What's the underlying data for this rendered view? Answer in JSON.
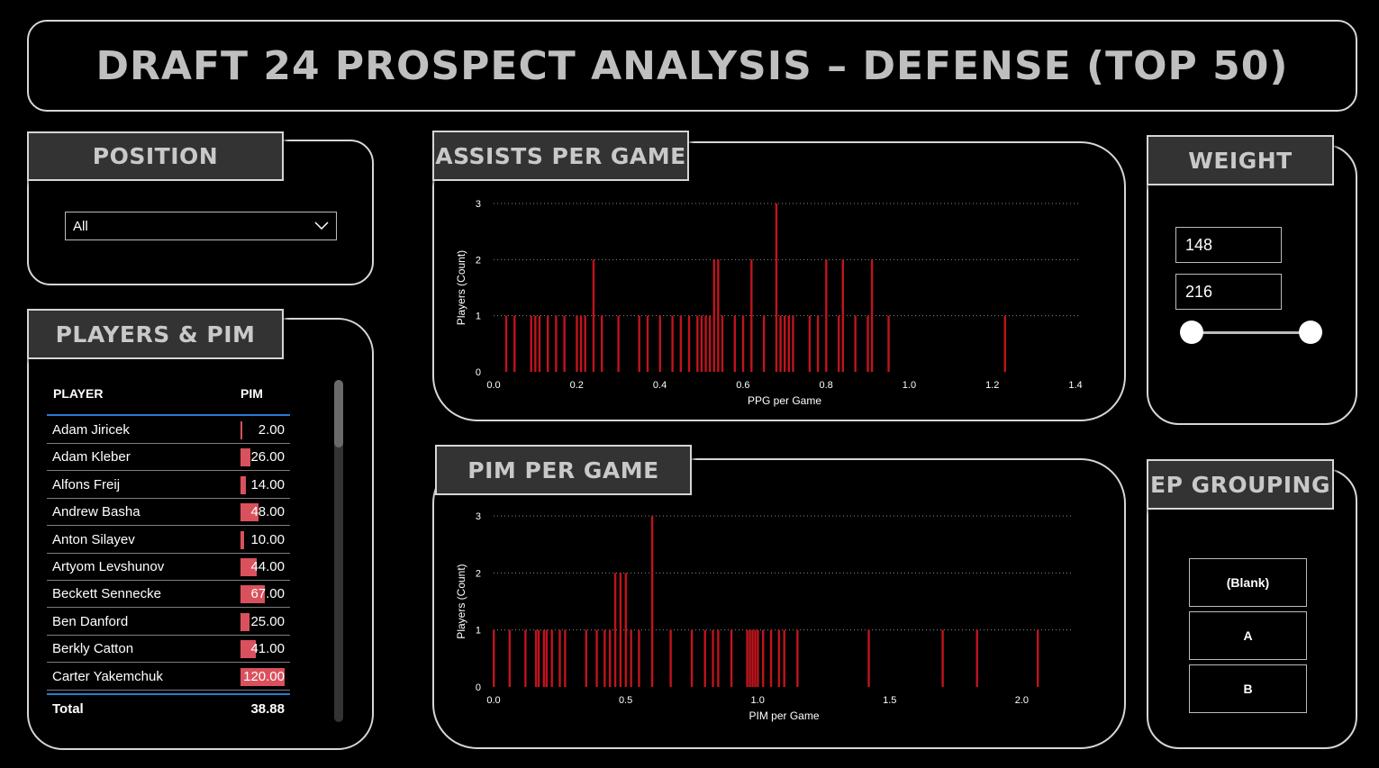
{
  "title": "DRAFT 24 PROSPECT ANALYSIS –  DEFENSE (TOP 50)",
  "colors": {
    "bar": "#c0141c",
    "pim_bar": "#d9515d",
    "panel_border": "#d6d6d6"
  },
  "position": {
    "header": "POSITION",
    "selected": "All",
    "chevron_icon": "chevron-down-icon"
  },
  "players_pim": {
    "header": "PLAYERS & PIM",
    "columns": [
      "PLAYER",
      "PIM"
    ],
    "rows": [
      {
        "player": "Adam Jiricek",
        "pim": "2.00",
        "value": 2
      },
      {
        "player": "Adam Kleber",
        "pim": "26.00",
        "value": 26
      },
      {
        "player": "Alfons Freij",
        "pim": "14.00",
        "value": 14
      },
      {
        "player": "Andrew Basha",
        "pim": "48.00",
        "value": 48
      },
      {
        "player": "Anton Silayev",
        "pim": "10.00",
        "value": 10
      },
      {
        "player": "Artyom Levshunov",
        "pim": "44.00",
        "value": 44
      },
      {
        "player": "Beckett Sennecke",
        "pim": "67.00",
        "value": 67
      },
      {
        "player": "Ben Danford",
        "pim": "25.00",
        "value": 25
      },
      {
        "player": "Berkly Catton",
        "pim": "41.00",
        "value": 41
      },
      {
        "player": "Carter Yakemchuk",
        "pim": "120.00",
        "value": 120
      }
    ],
    "total_label": "Total",
    "total_value": "38.88"
  },
  "weight": {
    "header": "WEIGHT",
    "min": "148",
    "max": "216"
  },
  "ep_grouping": {
    "header": "EP GROUPING",
    "options": [
      "(Blank)",
      "A",
      "B"
    ]
  },
  "assists_chart": {
    "header": "ASSISTS PER GAME"
  },
  "pim_chart": {
    "header": "PIM PER GAME"
  },
  "chart_data": [
    {
      "type": "bar",
      "title": "ASSISTS PER GAME",
      "xlabel": "PPG per Game",
      "ylabel": "Players (Count)",
      "xlim": [
        0,
        1.4
      ],
      "ylim": [
        0,
        3
      ],
      "xticks": [
        "0.0",
        "0.2",
        "0.4",
        "0.6",
        "0.8",
        "1.0",
        "1.2",
        "1.4"
      ],
      "yticks": [
        "0",
        "1",
        "2",
        "3"
      ],
      "grid": true,
      "points": [
        {
          "x": 0.03,
          "y": 1
        },
        {
          "x": 0.05,
          "y": 1
        },
        {
          "x": 0.09,
          "y": 1
        },
        {
          "x": 0.1,
          "y": 1
        },
        {
          "x": 0.11,
          "y": 1
        },
        {
          "x": 0.13,
          "y": 1
        },
        {
          "x": 0.15,
          "y": 1
        },
        {
          "x": 0.17,
          "y": 1
        },
        {
          "x": 0.2,
          "y": 1
        },
        {
          "x": 0.21,
          "y": 1
        },
        {
          "x": 0.22,
          "y": 1
        },
        {
          "x": 0.24,
          "y": 2
        },
        {
          "x": 0.26,
          "y": 1
        },
        {
          "x": 0.3,
          "y": 1
        },
        {
          "x": 0.35,
          "y": 1
        },
        {
          "x": 0.37,
          "y": 1
        },
        {
          "x": 0.4,
          "y": 1
        },
        {
          "x": 0.43,
          "y": 1
        },
        {
          "x": 0.45,
          "y": 1
        },
        {
          "x": 0.47,
          "y": 1
        },
        {
          "x": 0.49,
          "y": 1
        },
        {
          "x": 0.5,
          "y": 1
        },
        {
          "x": 0.51,
          "y": 1
        },
        {
          "x": 0.52,
          "y": 1
        },
        {
          "x": 0.53,
          "y": 2
        },
        {
          "x": 0.54,
          "y": 2
        },
        {
          "x": 0.55,
          "y": 1
        },
        {
          "x": 0.58,
          "y": 1
        },
        {
          "x": 0.6,
          "y": 1
        },
        {
          "x": 0.62,
          "y": 2
        },
        {
          "x": 0.65,
          "y": 1
        },
        {
          "x": 0.68,
          "y": 3
        },
        {
          "x": 0.69,
          "y": 1
        },
        {
          "x": 0.7,
          "y": 1
        },
        {
          "x": 0.71,
          "y": 1
        },
        {
          "x": 0.72,
          "y": 1
        },
        {
          "x": 0.76,
          "y": 1
        },
        {
          "x": 0.78,
          "y": 1
        },
        {
          "x": 0.8,
          "y": 2
        },
        {
          "x": 0.83,
          "y": 1
        },
        {
          "x": 0.84,
          "y": 2
        },
        {
          "x": 0.87,
          "y": 1
        },
        {
          "x": 0.9,
          "y": 1
        },
        {
          "x": 0.91,
          "y": 2
        },
        {
          "x": 0.95,
          "y": 1
        },
        {
          "x": 1.23,
          "y": 1
        }
      ]
    },
    {
      "type": "bar",
      "title": "PIM PER GAME",
      "xlabel": "PIM per Game",
      "ylabel": "Players (Count)",
      "xlim": [
        0,
        2.2
      ],
      "ylim": [
        0,
        3
      ],
      "xticks": [
        "0.0",
        "0.5",
        "1.0",
        "1.5",
        "2.0"
      ],
      "yticks": [
        "0",
        "1",
        "2",
        "3"
      ],
      "grid": true,
      "points": [
        {
          "x": 0.0,
          "y": 1
        },
        {
          "x": 0.06,
          "y": 1
        },
        {
          "x": 0.12,
          "y": 1
        },
        {
          "x": 0.16,
          "y": 1
        },
        {
          "x": 0.17,
          "y": 1
        },
        {
          "x": 0.19,
          "y": 1
        },
        {
          "x": 0.2,
          "y": 1
        },
        {
          "x": 0.22,
          "y": 1
        },
        {
          "x": 0.25,
          "y": 1
        },
        {
          "x": 0.27,
          "y": 1
        },
        {
          "x": 0.35,
          "y": 1
        },
        {
          "x": 0.39,
          "y": 1
        },
        {
          "x": 0.42,
          "y": 1
        },
        {
          "x": 0.44,
          "y": 1
        },
        {
          "x": 0.46,
          "y": 2
        },
        {
          "x": 0.48,
          "y": 2
        },
        {
          "x": 0.5,
          "y": 2
        },
        {
          "x": 0.52,
          "y": 1
        },
        {
          "x": 0.55,
          "y": 1
        },
        {
          "x": 0.6,
          "y": 3
        },
        {
          "x": 0.67,
          "y": 1
        },
        {
          "x": 0.75,
          "y": 1
        },
        {
          "x": 0.8,
          "y": 1
        },
        {
          "x": 0.83,
          "y": 1
        },
        {
          "x": 0.85,
          "y": 1
        },
        {
          "x": 0.9,
          "y": 1
        },
        {
          "x": 0.96,
          "y": 1
        },
        {
          "x": 0.97,
          "y": 1
        },
        {
          "x": 0.98,
          "y": 1
        },
        {
          "x": 0.99,
          "y": 1
        },
        {
          "x": 1.0,
          "y": 1
        },
        {
          "x": 1.02,
          "y": 1
        },
        {
          "x": 1.05,
          "y": 1
        },
        {
          "x": 1.08,
          "y": 1
        },
        {
          "x": 1.1,
          "y": 1
        },
        {
          "x": 1.15,
          "y": 1
        },
        {
          "x": 1.42,
          "y": 1
        },
        {
          "x": 1.7,
          "y": 1
        },
        {
          "x": 1.83,
          "y": 1
        },
        {
          "x": 2.06,
          "y": 1
        }
      ]
    }
  ]
}
